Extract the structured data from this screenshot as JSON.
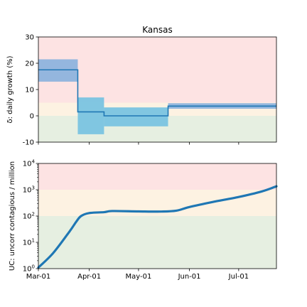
{
  "chart_data": [
    {
      "type": "line",
      "title": "Kansas",
      "ylabel": "δ: daily growth (%)",
      "xlabel": "",
      "ylim": [
        -10,
        30
      ],
      "yticks": [
        -10,
        0,
        10,
        20,
        30
      ],
      "yscale": "linear",
      "grid": false,
      "bands": [
        {
          "from": 5,
          "to": 30,
          "color": "#fde3e3"
        },
        {
          "from": 0,
          "to": 5,
          "color": "#fdf2e2"
        },
        {
          "from": -10,
          "to": 0,
          "color": "#e6efe1"
        }
      ],
      "band_fill_colors": [
        "#8eb3dd",
        "#7ac3e0"
      ],
      "line_color": "#1f77b4",
      "segments": [
        {
          "start": "2020-03-01",
          "end": "2020-03-25",
          "value": 17.5,
          "low": 13.0,
          "high": 21.5
        },
        {
          "start": "2020-03-25",
          "end": "2020-04-10",
          "value": 1.5,
          "low": -7.0,
          "high": 7.0
        },
        {
          "start": "2020-04-10",
          "end": "2020-05-19",
          "value": 0.0,
          "low": -4.0,
          "high": 3.2
        },
        {
          "start": "2020-05-19",
          "end": "2020-07-24",
          "value": 3.7,
          "low": 2.7,
          "high": 4.8
        }
      ]
    },
    {
      "type": "line",
      "title": "",
      "ylabel": "UC: uncorr contagious / million",
      "xlabel": "",
      "yscale": "log",
      "ylim": [
        1,
        10000
      ],
      "yticks": [
        {
          "value": 1,
          "base": "10",
          "exp": "0"
        },
        {
          "value": 10,
          "base": "10",
          "exp": "1"
        },
        {
          "value": 100,
          "base": "10",
          "exp": "2"
        },
        {
          "value": 1000,
          "base": "10",
          "exp": "3"
        },
        {
          "value": 10000,
          "base": "10",
          "exp": "4"
        }
      ],
      "grid": false,
      "bands": [
        {
          "from": 1000,
          "to": 10000,
          "color": "#fde3e3"
        },
        {
          "from": 100,
          "to": 1000,
          "color": "#fdf2e2"
        },
        {
          "from": 1,
          "to": 100,
          "color": "#e6efe1"
        }
      ],
      "line_color": "#1f77b4",
      "series": [
        {
          "x": [
            "2020-03-01",
            "2020-03-10",
            "2020-03-20",
            "2020-03-24",
            "2020-03-27",
            "2020-04-01",
            "2020-04-10",
            "2020-04-15",
            "2020-05-01",
            "2020-05-15",
            "2020-05-24",
            "2020-06-01",
            "2020-06-15",
            "2020-07-01",
            "2020-07-15",
            "2020-07-24"
          ],
          "values": [
            1.1,
            3.9,
            26,
            60,
            100,
            130,
            140,
            155,
            150,
            148,
            160,
            220,
            340,
            530,
            860,
            1350
          ]
        }
      ]
    }
  ],
  "x_axis": {
    "domain": [
      "2020-03-01",
      "2020-07-24"
    ],
    "ticks": [
      {
        "date": "2020-03-01",
        "label": "Mar-01"
      },
      {
        "date": "2020-04-01",
        "label": "Apr-01"
      },
      {
        "date": "2020-05-01",
        "label": "May-01"
      },
      {
        "date": "2020-06-01",
        "label": "Jun-01"
      },
      {
        "date": "2020-07-01",
        "label": "Jul-01"
      }
    ]
  }
}
